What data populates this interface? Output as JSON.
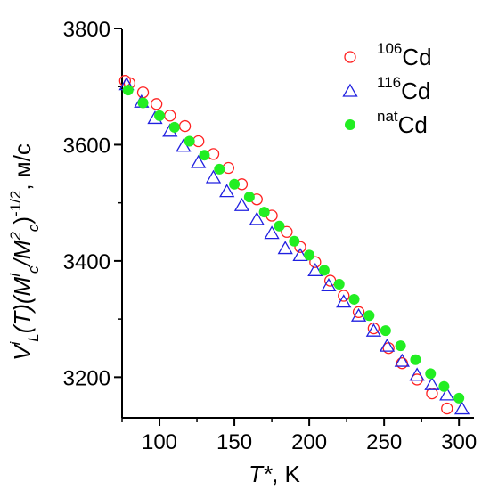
{
  "chart_data": {
    "type": "scatter",
    "title": "",
    "xlabel_var": "T*",
    "xlabel_unit": ", K",
    "ylabel": "V^i_L(T)(M^i_c/M^2_c)^-1/2 , м/с",
    "ylabel_parts": {
      "v": "V",
      "sup_i": "i",
      "sub_l": "L",
      "t_part": "(T)(",
      "m1": "M",
      "sup_i2": "i",
      "sub_c1": "c",
      "slash": "/",
      "m2": "M",
      "sup_2": "2",
      "sub_c2": "c",
      "close": ")",
      "sup_exp": "-1/2",
      "unit": ", м/с"
    },
    "xlim": [
      75,
      310
    ],
    "ylim": [
      3130,
      3800
    ],
    "x_ticks": [
      100,
      150,
      200,
      250,
      300
    ],
    "y_ticks": [
      3200,
      3400,
      3600,
      3800
    ],
    "x_tick_labels": [
      "100",
      "150",
      "200",
      "250",
      "300"
    ],
    "y_tick_labels": [
      "3200",
      "3400",
      "3600",
      "3800"
    ],
    "grid": false,
    "legend_position": "top-right",
    "series": [
      {
        "name": "106Cd",
        "label_sup": "106",
        "label_main": "Cd",
        "marker": "open-circle",
        "color": "#ff2020",
        "x": [
          77,
          80,
          89,
          98,
          107,
          117,
          126,
          136,
          146,
          155,
          165,
          175,
          185,
          194,
          204,
          214,
          223,
          233,
          243,
          253,
          262,
          272,
          282,
          292
        ],
        "y": [
          3710,
          3706,
          3690,
          3670,
          3650,
          3632,
          3606,
          3584,
          3560,
          3532,
          3506,
          3478,
          3450,
          3424,
          3398,
          3366,
          3340,
          3312,
          3284,
          3250,
          3224,
          3196,
          3172,
          3146
        ]
      },
      {
        "name": "116Cd",
        "label_sup": "116",
        "label_main": "Cd",
        "marker": "open-triangle",
        "color": "#2020e0",
        "x": [
          78,
          88,
          97,
          107,
          116,
          126,
          136,
          145,
          155,
          165,
          175,
          184,
          194,
          204,
          213,
          223,
          233,
          243,
          252,
          262,
          272,
          282,
          292,
          302
        ],
        "y": [
          3704,
          3674,
          3646,
          3624,
          3598,
          3570,
          3544,
          3520,
          3496,
          3472,
          3448,
          3422,
          3410,
          3384,
          3358,
          3330,
          3306,
          3280,
          3254,
          3228,
          3204,
          3188,
          3170,
          3146
        ]
      },
      {
        "name": "natCd",
        "label_sup": "nat",
        "label_main": "Cd",
        "marker": "filled-circle",
        "color": "#22ee22",
        "x": [
          79,
          89,
          100,
          110,
          120,
          130,
          140,
          150,
          160,
          170,
          180,
          190,
          200,
          210,
          220,
          230,
          240,
          251,
          261,
          271,
          281,
          290,
          300
        ],
        "y": [
          3694,
          3672,
          3650,
          3630,
          3606,
          3582,
          3558,
          3532,
          3510,
          3484,
          3460,
          3434,
          3410,
          3384,
          3360,
          3334,
          3306,
          3280,
          3254,
          3230,
          3206,
          3184,
          3164
        ]
      }
    ]
  }
}
